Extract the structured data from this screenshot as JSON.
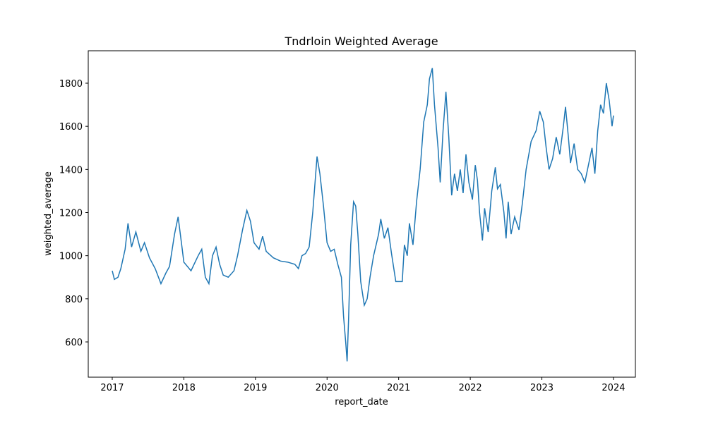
{
  "chart_data": {
    "type": "line",
    "title": "Tndrloin Weighted Average",
    "x_label": "report_date",
    "y_label": "weighted_average",
    "x": [
      2017.0,
      2017.03,
      2017.08,
      2017.12,
      2017.18,
      2017.22,
      2017.27,
      2017.33,
      2017.4,
      2017.45,
      2017.52,
      2017.6,
      2017.68,
      2017.75,
      2017.8,
      2017.87,
      2017.92,
      2017.97,
      2018.0,
      2018.1,
      2018.2,
      2018.25,
      2018.3,
      2018.35,
      2018.4,
      2018.45,
      2018.5,
      2018.55,
      2018.62,
      2018.7,
      2018.75,
      2018.82,
      2018.88,
      2018.93,
      2018.98,
      2019.05,
      2019.1,
      2019.15,
      2019.25,
      2019.35,
      2019.45,
      2019.55,
      2019.6,
      2019.65,
      2019.7,
      2019.75,
      2019.8,
      2019.86,
      2019.9,
      2019.95,
      2020.0,
      2020.05,
      2020.1,
      2020.15,
      2020.2,
      2020.23,
      2020.26,
      2020.28,
      2020.3,
      2020.33,
      2020.37,
      2020.4,
      2020.43,
      2020.47,
      2020.52,
      2020.56,
      2020.6,
      2020.65,
      2020.72,
      2020.75,
      2020.8,
      2020.85,
      2020.9,
      2020.96,
      2021.0,
      2021.05,
      2021.08,
      2021.12,
      2021.15,
      2021.2,
      2021.25,
      2021.3,
      2021.35,
      2021.4,
      2021.43,
      2021.47,
      2021.5,
      2021.55,
      2021.58,
      2021.62,
      2021.66,
      2021.7,
      2021.74,
      2021.78,
      2021.82,
      2021.86,
      2021.9,
      2021.94,
      2021.98,
      2022.03,
      2022.07,
      2022.1,
      2022.13,
      2022.17,
      2022.2,
      2022.25,
      2022.3,
      2022.35,
      2022.38,
      2022.42,
      2022.47,
      2022.5,
      2022.53,
      2022.57,
      2022.62,
      2022.68,
      2022.73,
      2022.78,
      2022.85,
      2022.92,
      2022.97,
      2023.02,
      2023.06,
      2023.1,
      2023.15,
      2023.2,
      2023.25,
      2023.3,
      2023.33,
      2023.37,
      2023.4,
      2023.45,
      2023.5,
      2023.55,
      2023.6,
      2023.65,
      2023.7,
      2023.74,
      2023.78,
      2023.82,
      2023.86,
      2023.9,
      2023.94,
      2023.98,
      2024.0
    ],
    "series": [
      {
        "name": "weighted_average",
        "color": "#1f77b4",
        "values": [
          930,
          890,
          900,
          940,
          1030,
          1150,
          1040,
          1110,
          1020,
          1060,
          990,
          940,
          870,
          920,
          950,
          1100,
          1180,
          1050,
          970,
          930,
          1000,
          1030,
          900,
          870,
          1000,
          1040,
          960,
          910,
          900,
          930,
          1000,
          1120,
          1210,
          1160,
          1060,
          1030,
          1090,
          1020,
          990,
          975,
          970,
          960,
          940,
          1000,
          1010,
          1040,
          1200,
          1460,
          1380,
          1230,
          1060,
          1020,
          1030,
          960,
          900,
          720,
          600,
          510,
          700,
          1050,
          1250,
          1230,
          1100,
          880,
          770,
          800,
          900,
          1000,
          1100,
          1170,
          1080,
          1130,
          1010,
          880,
          880,
          880,
          1050,
          1000,
          1150,
          1050,
          1250,
          1400,
          1620,
          1700,
          1820,
          1870,
          1700,
          1500,
          1340,
          1580,
          1760,
          1550,
          1280,
          1380,
          1300,
          1400,
          1290,
          1470,
          1340,
          1260,
          1420,
          1350,
          1200,
          1070,
          1220,
          1110,
          1300,
          1410,
          1310,
          1330,
          1200,
          1080,
          1250,
          1100,
          1180,
          1120,
          1250,
          1400,
          1530,
          1580,
          1670,
          1620,
          1500,
          1400,
          1450,
          1550,
          1470,
          1600,
          1690,
          1550,
          1430,
          1520,
          1400,
          1380,
          1340,
          1420,
          1500,
          1380,
          1580,
          1700,
          1660,
          1800,
          1720,
          1600,
          1650
        ]
      }
    ],
    "xlim": [
      2016.665,
      2024.306
    ],
    "xticks": [
      2017,
      2018,
      2019,
      2020,
      2021,
      2022,
      2023,
      2024
    ],
    "ylim": [
      436.5,
      1950.4
    ],
    "yticks": [
      600,
      800,
      1000,
      1200,
      1400,
      1600,
      1800
    ]
  }
}
